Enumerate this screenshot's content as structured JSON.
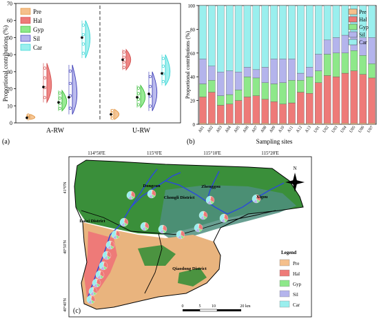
{
  "panel_a": {
    "label": "(a)",
    "ylabel": "Proportional contributions (%)",
    "groups": [
      "A-RW",
      "U-RW"
    ],
    "legend": [
      "Pre",
      "Hal",
      "Gyp",
      "Sil",
      "Car"
    ],
    "ticks": [
      "0",
      "10",
      "20",
      "30",
      "40",
      "50",
      "60",
      "70"
    ]
  },
  "panel_b": {
    "label": "(b)",
    "ylabel": "Proportional contributions (%)",
    "xlabel": "Sampling sites",
    "legend": [
      "Pre",
      "Hal",
      "Gyp",
      "Sil",
      "Car"
    ],
    "ticks": [
      "0",
      "20",
      "40",
      "60",
      "80",
      "100"
    ]
  },
  "panel_c": {
    "label": "(c)",
    "lon_labels": [
      "114°50'E",
      "115°0'E",
      "115°10'E",
      "115°20'E"
    ],
    "lat_labels": [
      "41°0'N",
      "40°50'N",
      "40°40'N"
    ],
    "places": [
      "Dongcun",
      "Zhenggou",
      "Xigou",
      "Chongli District",
      "Daixi District",
      "Qiaodong District"
    ],
    "legend_title": "Legend",
    "legend": [
      "Pre",
      "Hal",
      "Gyp",
      "Sil",
      "Car"
    ],
    "scale": [
      "0",
      "5",
      "10",
      "20 km"
    ],
    "north": "N"
  },
  "colors": {
    "Pre": "#f5c08c",
    "Hal": "#ee7a78",
    "Gyp": "#8ee88a",
    "Sil": "#b4b4ec",
    "Car": "#9aefee"
  },
  "chart_data": [
    {
      "type": "violin",
      "title": "",
      "ylabel": "Proportional contributions (%)",
      "ylim": [
        0,
        70
      ],
      "categories": [
        "A-RW",
        "U-RW"
      ],
      "series": [
        {
          "name": "Pre",
          "mean": [
            3,
            5
          ]
        },
        {
          "name": "Hal",
          "mean": [
            21,
            37
          ]
        },
        {
          "name": "Gyp",
          "mean": [
            12,
            15
          ]
        },
        {
          "name": "Sil",
          "mean": [
            15,
            17
          ]
        },
        {
          "name": "Car",
          "mean": [
            50,
            29
          ]
        }
      ]
    },
    {
      "type": "bar",
      "stacked": true,
      "title": "",
      "xlabel": "Sampling sites",
      "ylabel": "Proportional contributions (%)",
      "ylim": [
        0,
        100
      ],
      "categories": [
        "A01",
        "A02",
        "A03",
        "A04",
        "A05",
        "A06",
        "A07",
        "A08",
        "A09",
        "A10",
        "A11",
        "A12",
        "A13",
        "U01",
        "U02",
        "U03",
        "U04",
        "U05",
        "U06",
        "U07"
      ],
      "series": [
        {
          "name": "Pre",
          "values": [
            1,
            1,
            1,
            1,
            1,
            1,
            1,
            1,
            1,
            1,
            1,
            1,
            1,
            1,
            1,
            1,
            1,
            1,
            1,
            1
          ]
        },
        {
          "name": "Hal",
          "values": [
            22,
            26,
            15,
            16,
            19,
            22,
            23,
            20,
            18,
            16,
            17,
            26,
            25,
            34,
            40,
            39,
            42,
            44,
            41,
            38
          ]
        },
        {
          "name": "Gyp",
          "values": [
            11,
            10,
            8,
            8,
            9,
            17,
            15,
            14,
            15,
            18,
            19,
            10,
            14,
            10,
            18,
            20,
            17,
            17,
            16,
            12
          ]
        },
        {
          "name": "Sil",
          "values": [
            21,
            12,
            20,
            20,
            15,
            8,
            7,
            13,
            21,
            20,
            18,
            6,
            8,
            14,
            12,
            13,
            15,
            13,
            15,
            22
          ]
        },
        {
          "name": "Car",
          "values": [
            45,
            51,
            56,
            55,
            56,
            52,
            54,
            52,
            45,
            45,
            45,
            57,
            52,
            41,
            29,
            27,
            25,
            25,
            27,
            27
          ]
        }
      ]
    }
  ]
}
